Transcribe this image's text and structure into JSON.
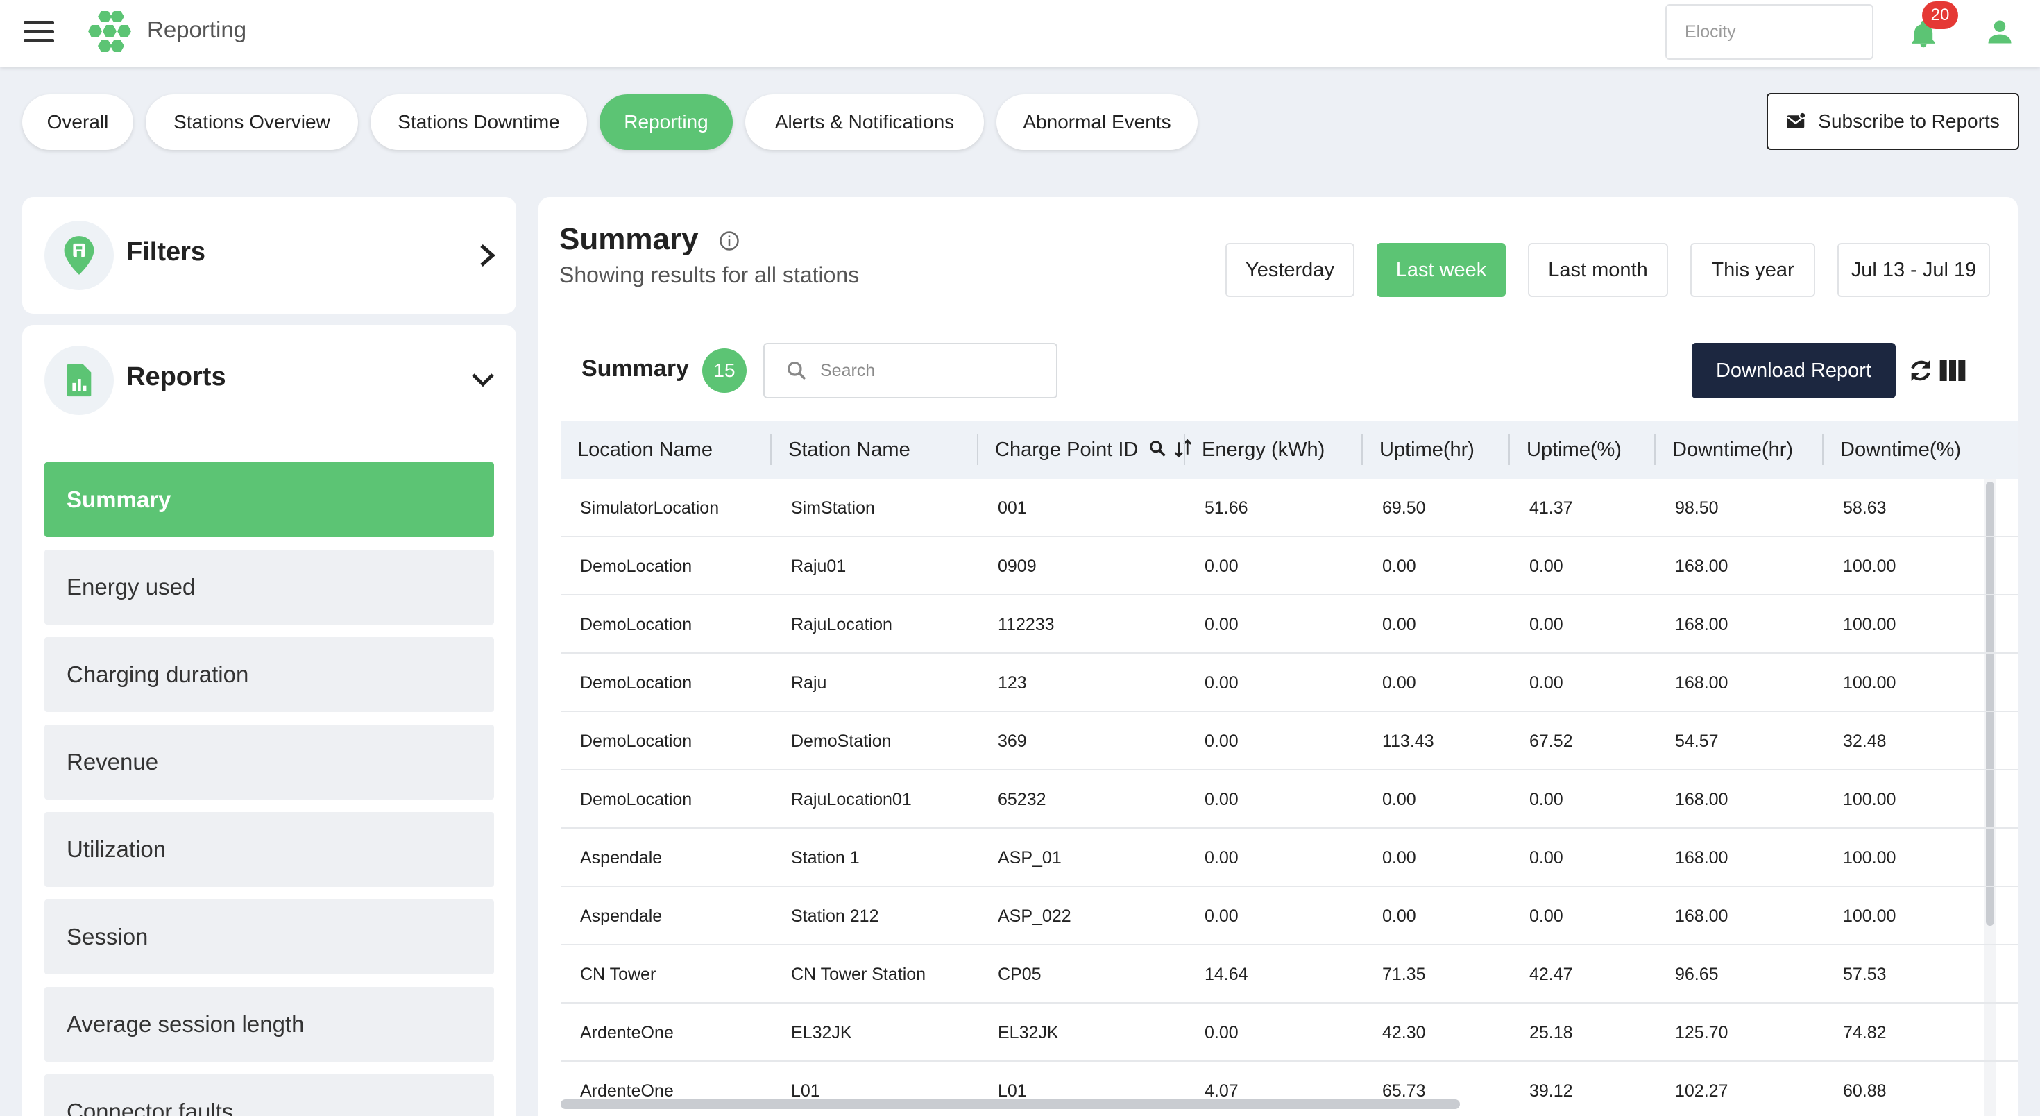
{
  "header": {
    "title": "Reporting",
    "search_placeholder": "Elocity",
    "notifications_count": "20"
  },
  "tabs": [
    {
      "label": "Overall",
      "active": false
    },
    {
      "label": "Stations Overview",
      "active": false
    },
    {
      "label": "Stations Downtime",
      "active": false
    },
    {
      "label": "Reporting",
      "active": true
    },
    {
      "label": "Alerts & Notifications",
      "active": false
    },
    {
      "label": "Abnormal Events",
      "active": false
    }
  ],
  "subscribe_label": "Subscribe to Reports",
  "sidebar": {
    "filters_title": "Filters",
    "reports_title": "Reports",
    "items": [
      {
        "label": "Summary",
        "active": true
      },
      {
        "label": "Energy used",
        "active": false
      },
      {
        "label": "Charging duration",
        "active": false
      },
      {
        "label": "Revenue",
        "active": false
      },
      {
        "label": "Utilization",
        "active": false
      },
      {
        "label": "Session",
        "active": false
      },
      {
        "label": "Average session length",
        "active": false
      },
      {
        "label": "Connector faults",
        "active": false
      }
    ]
  },
  "main": {
    "title": "Summary",
    "subtitle": "Showing results for all stations",
    "ranges": [
      {
        "label": "Yesterday",
        "active": false
      },
      {
        "label": "Last week",
        "active": true
      },
      {
        "label": "Last month",
        "active": false
      },
      {
        "label": "This year",
        "active": false
      },
      {
        "label": "Jul 13 - Jul 19",
        "active": false
      }
    ],
    "summary_label": "Summary",
    "summary_count": "15",
    "search_placeholder": "Search",
    "download_label": "Download Report"
  },
  "table": {
    "columns": [
      "Location Name",
      "Station Name",
      "Charge Point ID",
      "Energy (kWh)",
      "Uptime(hr)",
      "Uptime(%)",
      "Downtime(hr)",
      "Downtime(%)"
    ],
    "rows": [
      [
        "SimulatorLocation",
        "SimStation",
        "001",
        "51.66",
        "69.50",
        "41.37",
        "98.50",
        "58.63"
      ],
      [
        "DemoLocation",
        "Raju01",
        "0909",
        "0.00",
        "0.00",
        "0.00",
        "168.00",
        "100.00"
      ],
      [
        "DemoLocation",
        "RajuLocation",
        "112233",
        "0.00",
        "0.00",
        "0.00",
        "168.00",
        "100.00"
      ],
      [
        "DemoLocation",
        "Raju",
        "123",
        "0.00",
        "0.00",
        "0.00",
        "168.00",
        "100.00"
      ],
      [
        "DemoLocation",
        "DemoStation",
        "369",
        "0.00",
        "113.43",
        "67.52",
        "54.57",
        "32.48"
      ],
      [
        "DemoLocation",
        "RajuLocation01",
        "65232",
        "0.00",
        "0.00",
        "0.00",
        "168.00",
        "100.00"
      ],
      [
        "Aspendale",
        "Station 1",
        "ASP_01",
        "0.00",
        "0.00",
        "0.00",
        "168.00",
        "100.00"
      ],
      [
        "Aspendale",
        "Station 212",
        "ASP_022",
        "0.00",
        "0.00",
        "0.00",
        "168.00",
        "100.00"
      ],
      [
        "CN Tower",
        "CN Tower Station",
        "CP05",
        "14.64",
        "71.35",
        "42.47",
        "96.65",
        "57.53"
      ],
      [
        "ArdenteOne",
        "EL32JK",
        "EL32JK",
        "0.00",
        "42.30",
        "25.18",
        "125.70",
        "74.82"
      ],
      [
        "ArdenteOne",
        "L01",
        "L01",
        "4.07",
        "65.73",
        "39.12",
        "102.27",
        "60.88"
      ]
    ]
  },
  "colors": {
    "accent": "#5cc474",
    "dark_button": "#1c2740",
    "badge": "#e53935",
    "background": "#edf0f5"
  }
}
